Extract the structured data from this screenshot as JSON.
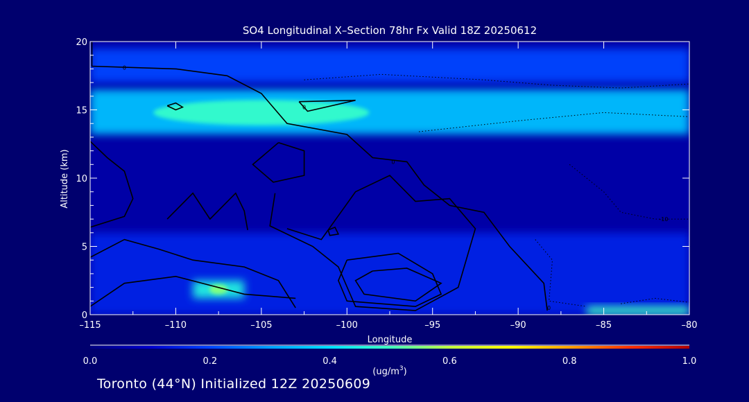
{
  "chart_data": {
    "type": "heatmap",
    "title": "SO4 Longitudinal X–Section 78hr  Fx Valid 18Z 20250612",
    "xlabel": "Longitude",
    "ylabel": "Altitude (km)",
    "xlim": [
      -115,
      -80
    ],
    "ylim": [
      0,
      20
    ],
    "x_ticks": [
      -115,
      -110,
      -105,
      -100,
      -95,
      -90,
      -85,
      -80
    ],
    "x_tick_labels": [
      "–115",
      "–110",
      "–105",
      "–100",
      "–95",
      "–90",
      "–85",
      "–80"
    ],
    "y_ticks": [
      0,
      5,
      10,
      15,
      20
    ],
    "y_tick_labels": [
      "0",
      "5",
      "10",
      "15",
      "20"
    ],
    "colorbar": {
      "min": 0.0,
      "max": 1.0,
      "ticks": [
        "0.0",
        "0.2",
        "0.4",
        "0.6",
        "0.8",
        "1.0"
      ],
      "unit_text": "(ug/m",
      "unit_sup": "3",
      "unit_close": ")",
      "colors": [
        "#000080",
        "#0000cc",
        "#0044ff",
        "#00a0ff",
        "#00e0ff",
        "#40ffc0",
        "#c0ff40",
        "#ffff00",
        "#ffa000",
        "#ff3000",
        "#b00000"
      ]
    },
    "field": {
      "background_value": 0.05,
      "features": [
        {
          "lon_min": -115,
          "lon_max": -80,
          "alt_min": 13.2,
          "alt_max": 16.5,
          "value": 0.35,
          "center_lon": -105,
          "center_alt": 14.8,
          "peak": 0.48
        },
        {
          "lon_min": -115,
          "lon_max": -80,
          "alt_min": 17,
          "alt_max": 19.5,
          "value": 0.2
        },
        {
          "lon_min": -115,
          "lon_max": -80,
          "alt_min": 0,
          "alt_max": 6,
          "value": 0.15
        },
        {
          "lon_min": -109,
          "lon_max": -106,
          "alt_min": 1.2,
          "alt_max": 2.5,
          "value": 0.45,
          "peak": 0.55
        },
        {
          "lon_min": -86,
          "lon_max": -80,
          "alt_min": 0,
          "alt_max": 0.6,
          "value": 0.5
        }
      ]
    },
    "contour_labels": [
      "0",
      "0",
      "0",
      "0",
      "-10"
    ]
  },
  "footer": {
    "text": "Toronto (44°N) Initialized 12Z 20250609"
  }
}
